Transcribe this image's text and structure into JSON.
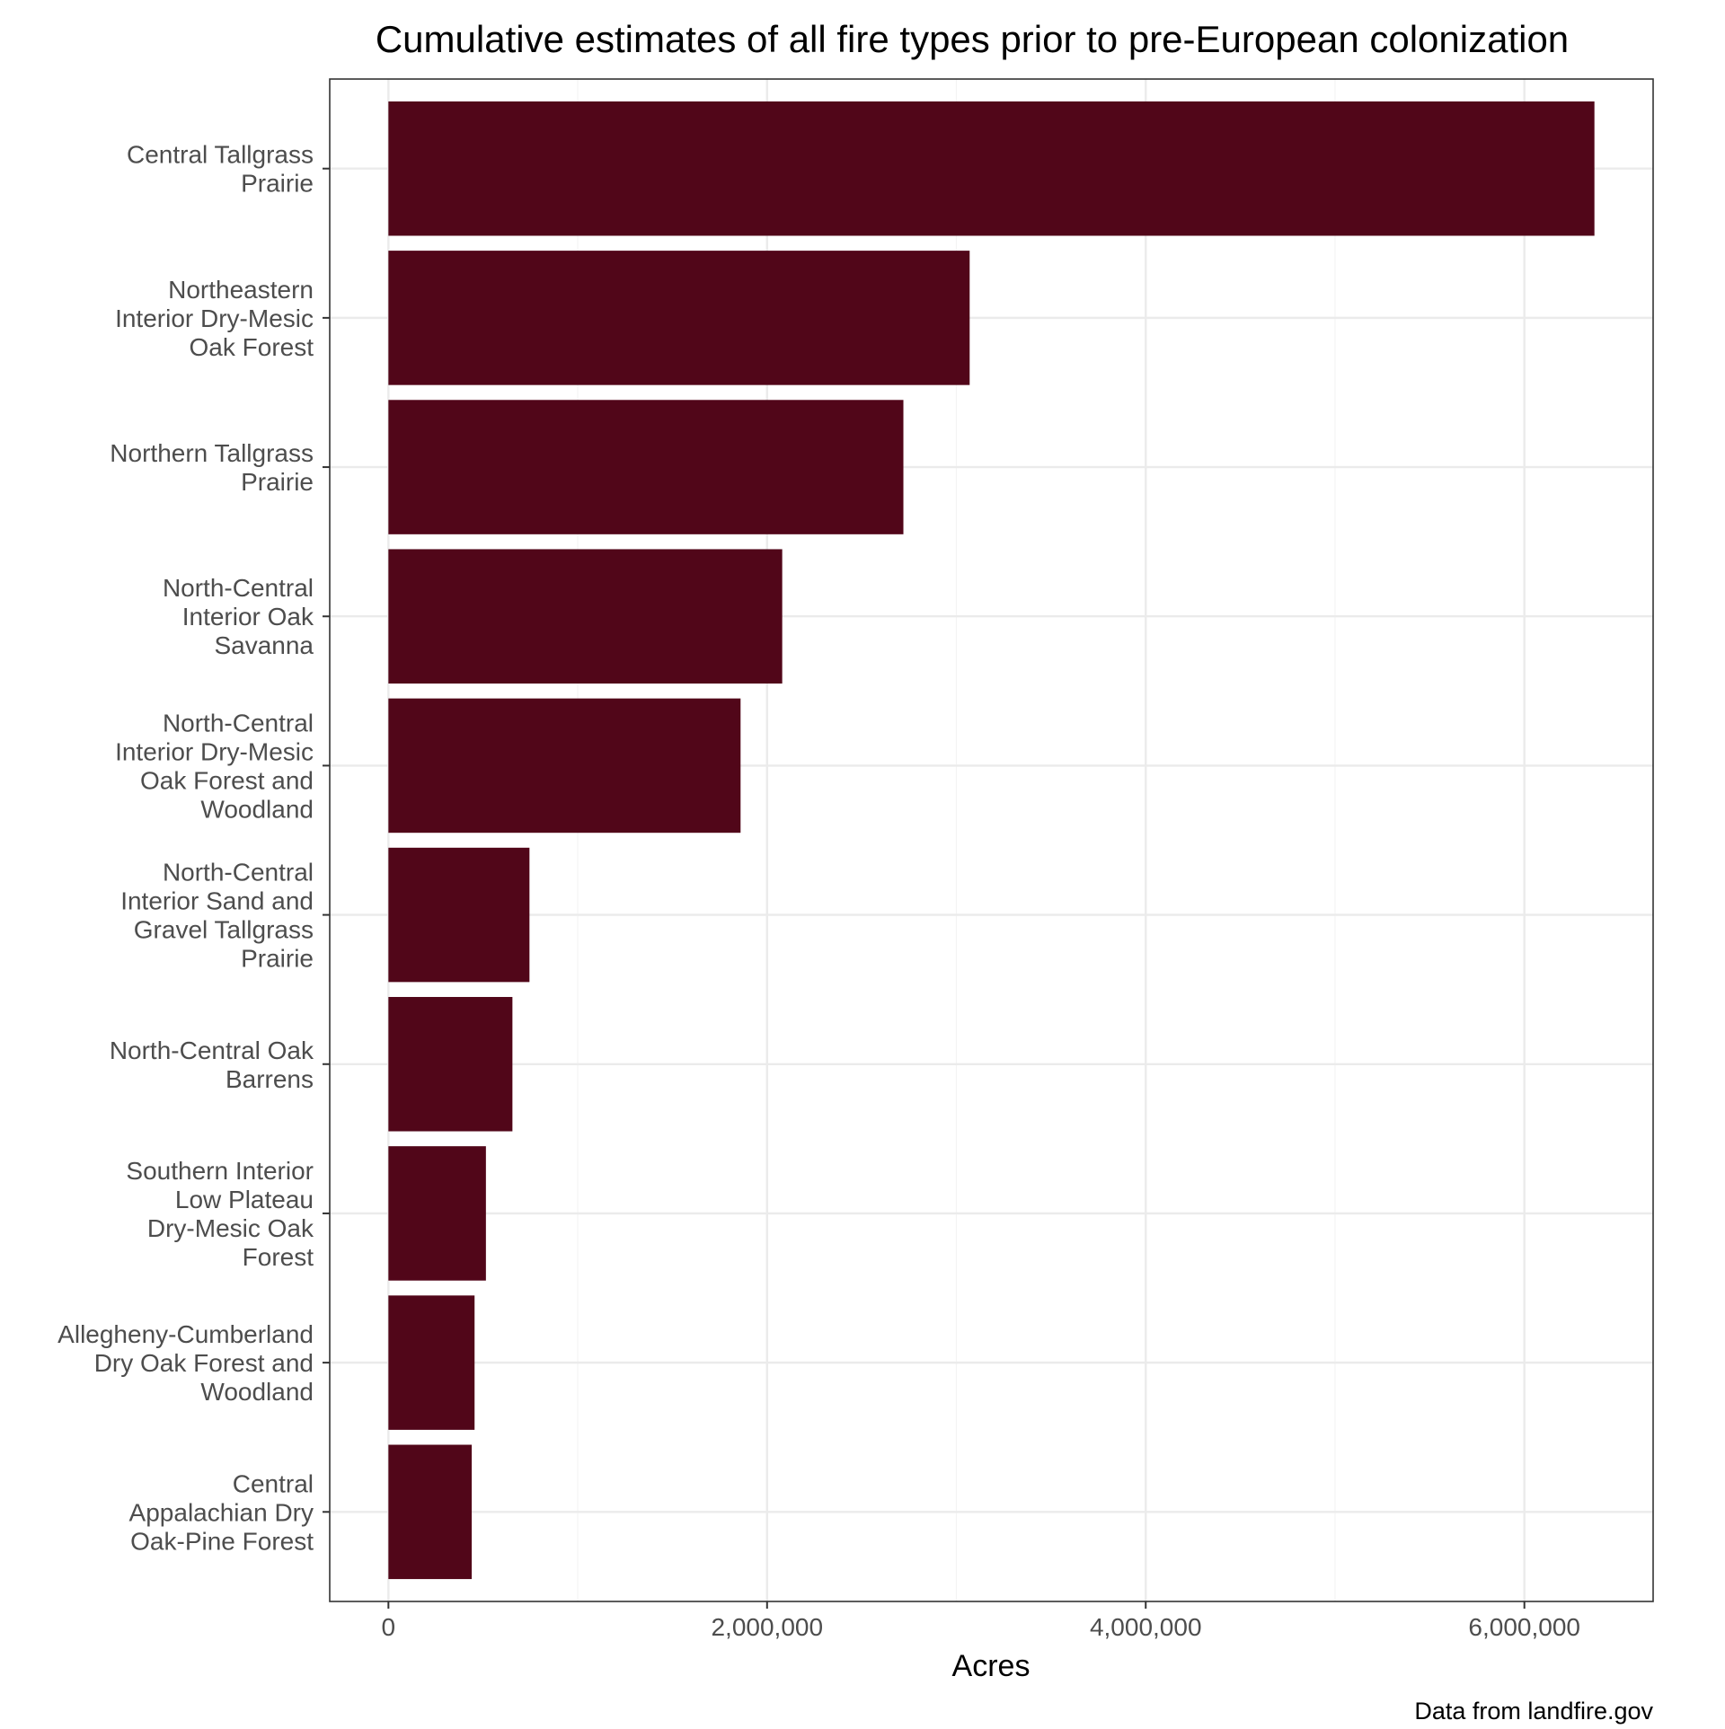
{
  "chart_data": {
    "type": "bar",
    "orientation": "horizontal",
    "title": "Cumulative estimates of all fire types prior to pre-European colonization",
    "xlabel": "Acres",
    "ylabel": "",
    "caption": "Data from landfire.gov",
    "xlim": [
      -310000,
      6680000
    ],
    "x_ticks": [
      0,
      2000000,
      4000000,
      6000000
    ],
    "x_tick_labels": [
      "0",
      "2,000,000",
      "4,000,000",
      "6,000,000"
    ],
    "grid": true,
    "bar_color": "#510619",
    "categories": [
      [
        "Central Tallgrass",
        "Prairie"
      ],
      [
        "Northeastern",
        "Interior Dry-Mesic",
        "Oak Forest"
      ],
      [
        "Northern Tallgrass",
        "Prairie"
      ],
      [
        "North-Central",
        "Interior Oak",
        "Savanna"
      ],
      [
        "North-Central",
        "Interior Dry-Mesic",
        "Oak Forest and",
        "Woodland"
      ],
      [
        "North-Central",
        "Interior Sand and",
        "Gravel Tallgrass",
        "Prairie"
      ],
      [
        "North-Central Oak",
        "Barrens"
      ],
      [
        "Southern Interior",
        "Low Plateau",
        "Dry-Mesic Oak",
        "Forest"
      ],
      [
        "Allegheny-Cumberland",
        "Dry Oak Forest and",
        "Woodland"
      ],
      [
        "Central",
        "Appalachian Dry",
        "Oak-Pine Forest"
      ]
    ],
    "values": [
      6370000,
      3070000,
      2720000,
      2080000,
      1860000,
      745000,
      655000,
      515000,
      455000,
      440000
    ]
  }
}
